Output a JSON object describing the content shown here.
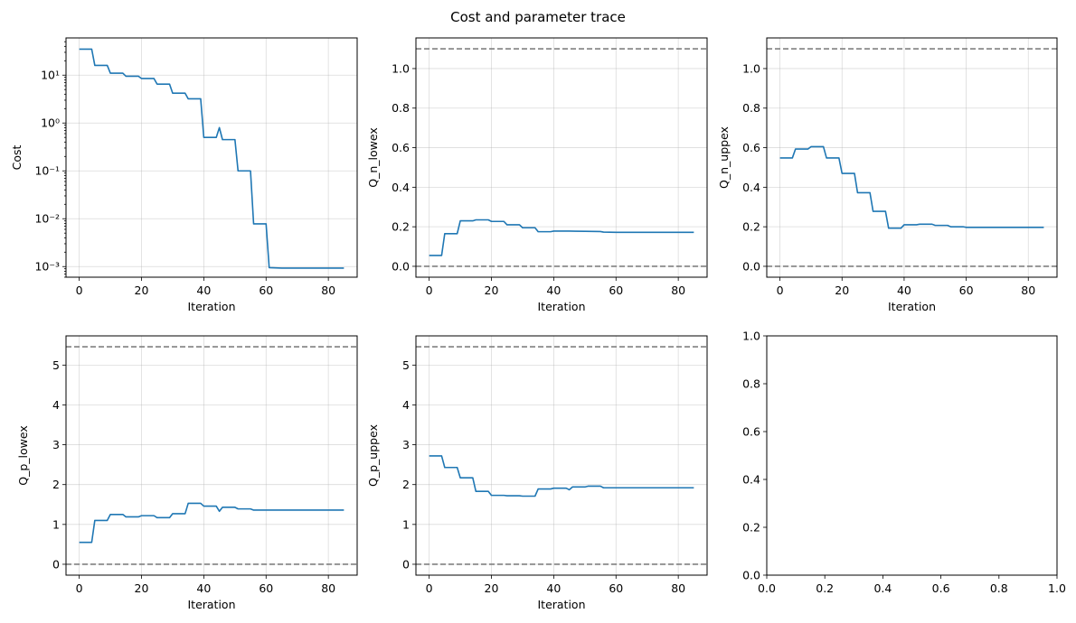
{
  "figure": {
    "title": "Cost and parameter trace"
  },
  "style": {
    "series_color": "#1f77b4",
    "reference_line_color": "#808080"
  },
  "chart_data": [
    {
      "type": "line",
      "xlabel": "Iteration",
      "ylabel": "Cost",
      "yscale": "log",
      "xlim": [
        -4.25,
        89.25
      ],
      "ylim": [
        0.0006,
        60
      ],
      "xticks": [
        0,
        20,
        40,
        60,
        80
      ],
      "yticks": [
        0.001,
        0.01,
        0.1,
        1,
        10
      ],
      "ytick_labels": [
        "10⁻³",
        "10⁻²",
        "10⁻¹",
        "10⁰",
        "10¹"
      ],
      "grid": true,
      "hlines": [],
      "series": [
        {
          "x": [
            0,
            4,
            5,
            9,
            10,
            14,
            15,
            19,
            20,
            24,
            25,
            29,
            30,
            34,
            35,
            39,
            40,
            44,
            45,
            46,
            50,
            51,
            55,
            56,
            60,
            61,
            65,
            70,
            75,
            80,
            85
          ],
          "y": [
            35,
            35,
            16,
            16,
            11,
            11,
            9.5,
            9.5,
            8.5,
            8.5,
            6.5,
            6.5,
            4.2,
            4.2,
            3.2,
            3.2,
            0.5,
            0.5,
            0.8,
            0.45,
            0.45,
            0.1,
            0.1,
            0.0078,
            0.0078,
            0.00095,
            0.00093,
            0.00093,
            0.00093,
            0.00093,
            0.00093
          ]
        }
      ]
    },
    {
      "type": "line",
      "xlabel": "Iteration",
      "ylabel": "Q_n_lowex",
      "yscale": "linear",
      "xlim": [
        -4.25,
        89.25
      ],
      "ylim": [
        -0.055,
        1.155
      ],
      "xticks": [
        0,
        20,
        40,
        60,
        80
      ],
      "yticks": [
        0.0,
        0.2,
        0.4,
        0.6,
        0.8,
        1.0
      ],
      "ytick_labels": [
        "0.0",
        "0.2",
        "0.4",
        "0.6",
        "0.8",
        "1.0"
      ],
      "grid": true,
      "hlines": [
        0.0,
        1.1
      ],
      "series": [
        {
          "x": [
            0,
            4,
            5,
            9,
            10,
            14,
            15,
            19,
            20,
            24,
            25,
            29,
            30,
            34,
            35,
            39,
            40,
            45,
            50,
            55,
            56,
            60,
            70,
            80,
            85
          ],
          "y": [
            0.055,
            0.055,
            0.165,
            0.165,
            0.23,
            0.23,
            0.235,
            0.235,
            0.227,
            0.227,
            0.21,
            0.21,
            0.195,
            0.195,
            0.175,
            0.175,
            0.178,
            0.178,
            0.177,
            0.176,
            0.173,
            0.172,
            0.172,
            0.172,
            0.172
          ]
        }
      ]
    },
    {
      "type": "line",
      "xlabel": "Iteration",
      "ylabel": "Q_n_uppex",
      "yscale": "linear",
      "xlim": [
        -4.25,
        89.25
      ],
      "ylim": [
        -0.055,
        1.155
      ],
      "xticks": [
        0,
        20,
        40,
        60,
        80
      ],
      "yticks": [
        0.0,
        0.2,
        0.4,
        0.6,
        0.8,
        1.0
      ],
      "ytick_labels": [
        "0.0",
        "0.2",
        "0.4",
        "0.6",
        "0.8",
        "1.0"
      ],
      "grid": true,
      "hlines": [
        0.0,
        1.1
      ],
      "series": [
        {
          "x": [
            0,
            4,
            5,
            9,
            10,
            14,
            15,
            19,
            20,
            24,
            25,
            29,
            30,
            34,
            35,
            39,
            40,
            44,
            45,
            49,
            50,
            54,
            55,
            59,
            60,
            70,
            80,
            85
          ],
          "y": [
            0.548,
            0.548,
            0.593,
            0.593,
            0.605,
            0.605,
            0.548,
            0.548,
            0.47,
            0.47,
            0.372,
            0.372,
            0.278,
            0.278,
            0.193,
            0.193,
            0.21,
            0.21,
            0.213,
            0.213,
            0.207,
            0.207,
            0.2,
            0.2,
            0.197,
            0.197,
            0.197,
            0.197
          ]
        }
      ]
    },
    {
      "type": "line",
      "xlabel": "Iteration",
      "ylabel": "Q_p_lowex",
      "yscale": "linear",
      "xlim": [
        -4.25,
        89.25
      ],
      "ylim": [
        -0.273,
        5.733
      ],
      "xticks": [
        0,
        20,
        40,
        60,
        80
      ],
      "yticks": [
        0,
        1,
        2,
        3,
        4,
        5
      ],
      "ytick_labels": [
        "0",
        "1",
        "2",
        "3",
        "4",
        "5"
      ],
      "grid": true,
      "hlines": [
        0.0,
        5.46
      ],
      "series": [
        {
          "x": [
            0,
            4,
            5,
            9,
            10,
            14,
            15,
            19,
            20,
            24,
            25,
            29,
            30,
            34,
            35,
            39,
            40,
            44,
            45,
            46,
            50,
            51,
            55,
            56,
            60,
            70,
            80,
            85
          ],
          "y": [
            0.55,
            0.55,
            1.1,
            1.1,
            1.25,
            1.25,
            1.19,
            1.19,
            1.22,
            1.22,
            1.17,
            1.17,
            1.27,
            1.27,
            1.53,
            1.53,
            1.46,
            1.46,
            1.33,
            1.43,
            1.43,
            1.39,
            1.39,
            1.36,
            1.36,
            1.36,
            1.36,
            1.36
          ]
        }
      ]
    },
    {
      "type": "line",
      "xlabel": "Iteration",
      "ylabel": "Q_p_uppex",
      "yscale": "linear",
      "xlim": [
        -4.25,
        89.25
      ],
      "ylim": [
        -0.273,
        5.733
      ],
      "xticks": [
        0,
        20,
        40,
        60,
        80
      ],
      "yticks": [
        0,
        1,
        2,
        3,
        4,
        5
      ],
      "ytick_labels": [
        "0",
        "1",
        "2",
        "3",
        "4",
        "5"
      ],
      "grid": true,
      "hlines": [
        0.0,
        5.46
      ],
      "series": [
        {
          "x": [
            0,
            4,
            5,
            9,
            10,
            14,
            15,
            19,
            20,
            24,
            25,
            29,
            30,
            34,
            35,
            39,
            40,
            44,
            45,
            46,
            50,
            51,
            55,
            56,
            60,
            70,
            80,
            85
          ],
          "y": [
            2.72,
            2.72,
            2.43,
            2.43,
            2.17,
            2.17,
            1.83,
            1.83,
            1.73,
            1.73,
            1.72,
            1.72,
            1.71,
            1.71,
            1.89,
            1.89,
            1.91,
            1.91,
            1.87,
            1.94,
            1.94,
            1.96,
            1.96,
            1.92,
            1.92,
            1.92,
            1.92,
            1.92
          ]
        }
      ]
    },
    {
      "type": "line",
      "xlabel": "",
      "ylabel": "",
      "yscale": "linear",
      "xlim": [
        0.0,
        1.0
      ],
      "ylim": [
        0.0,
        1.0
      ],
      "xticks": [
        0.0,
        0.2,
        0.4,
        0.6,
        0.8,
        1.0
      ],
      "xtick_labels": [
        "0.0",
        "0.2",
        "0.4",
        "0.6",
        "0.8",
        "1.0"
      ],
      "yticks": [
        0.0,
        0.2,
        0.4,
        0.6,
        0.8,
        1.0
      ],
      "ytick_labels": [
        "0.0",
        "0.2",
        "0.4",
        "0.6",
        "0.8",
        "1.0"
      ],
      "grid": false,
      "hlines": [],
      "series": []
    }
  ]
}
